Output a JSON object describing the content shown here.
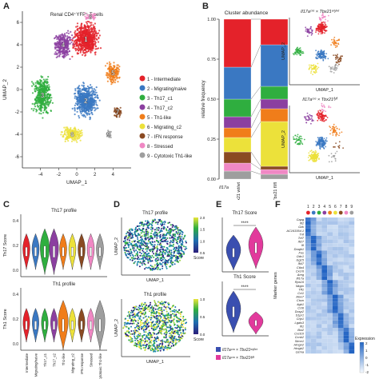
{
  "panels": {
    "A": "A",
    "B": "B",
    "C": "C",
    "D": "D",
    "E": "E",
    "F": "F"
  },
  "colors": {
    "c0": "#e4222a",
    "c1": "#3a78c2",
    "c2": "#2fae3f",
    "c3": "#8b3fa0",
    "c4": "#f07d1a",
    "c5": "#ece13a",
    "c6": "#8a4a22",
    "c7": "#f088c4",
    "c8": "#9e9e9e"
  },
  "panelA": {
    "title": "Renal CD4⁺YFP⁺ T cells",
    "xlabel": "UMAP_1",
    "ylabel": "UMAP_2",
    "xticks": [
      "-4",
      "-2",
      "0",
      "2",
      "4"
    ],
    "yticks": [
      "-6",
      "-4",
      "-2",
      "0",
      "2",
      "4",
      "6"
    ],
    "cluster_labels": [
      "1",
      "2",
      "3",
      "4",
      "5",
      "6",
      "7",
      "8",
      "9"
    ],
    "legend": [
      "1 - Intermediate",
      "2 - Migrating/naive",
      "3 - Th17_c1",
      "4 - Th17_c2",
      "5 - Th1-like",
      "6 - Migrating_c2",
      "7 - IFN response",
      "8 - Stressed",
      "9 - Cytotoxic Th1-like"
    ]
  },
  "panelB": {
    "title": "Cluster abundance",
    "ylabel": "relative frequency",
    "yticks": [
      "0.00",
      "0.25",
      "0.50",
      "0.75",
      "1.00"
    ],
    "xlabel_prefix": "Il17a",
    "umap_top_title": "Il17aᶜʳᵉ × Tbx21ʷᵗ/ʷᵗ",
    "umap_bottom_title": "Il17aᶜʳᵉ × Tbx21ᶠˡ/ᶠˡ",
    "umap_xlabel": "UMAP_1",
    "umap_ylabel": "UMAP_2"
  },
  "panelC": {
    "top_title": "Th17 profile",
    "top_ylabel": "Th17 Score",
    "top_yticks": [
      "0.4",
      "0.2",
      "0.0"
    ],
    "bottom_title": "Th1 profile",
    "bottom_ylabel": "Th1 Score",
    "bottom_yticks": [
      "0.4",
      "0.2",
      "0.0"
    ],
    "categories": [
      "Intermediate",
      "Migrating/naive",
      "Th17_c1",
      "Th17_c2",
      "Th1-like",
      "Migrating_c2",
      "IFN response",
      "Stressed",
      "Cytotoxic Th1-like"
    ]
  },
  "panelD": {
    "top_title": "Th17 profile",
    "bottom_title": "Th1 profile",
    "xlabel": "UMAP_1",
    "ylabel": "UMAP_2",
    "top_scale": [
      "0.5",
      "1.0",
      "1.5",
      "2.0"
    ],
    "bottom_scale": [
      "0.0",
      "0.5",
      "1.0"
    ],
    "scale_title": "Score"
  },
  "panelE": {
    "top_title": "Th17 Score",
    "bottom_title": "Th1 Score",
    "sig": "****",
    "legend1": "Il17aᶜʳᵉ × Tbx21ʷᵗ/ʷᵗ",
    "legend2": "Il17aᶜʳᵉ × Tbx21ᶠˡ/ᶠˡ"
  },
  "panelF": {
    "cluster_numbers": [
      "1",
      "2",
      "3",
      "4",
      "5",
      "6",
      "7",
      "8",
      "9"
    ],
    "ylabel": "Marker genes",
    "genes": [
      "Capg",
      "Ifi2",
      "Gzk",
      "AC163354.1",
      "Tnf",
      "Tcf7",
      "Ifi27",
      "Ifi",
      "Dnajb1",
      "Fos",
      "Odc1",
      "Isg15",
      "Ifi47",
      "Ctla4",
      "Cxcr6",
      "Areg",
      "Ifi17a",
      "Rps16",
      "Nkgm",
      "Tff1",
      "Ccl1",
      "Alox7",
      "Ctsm",
      "Itgb1",
      "Ccl6",
      "Dusp2",
      "S1pr1",
      "Crip1",
      "Lgals3",
      "Ifi1",
      "Bst2",
      "Cxcl10",
      "Ccnb2",
      "Stmn1",
      "Hmgn2",
      "Hmgb2",
      "Gzma"
    ],
    "scale_title": "Expression",
    "scale_ticks": [
      "2",
      "1",
      "0",
      "-1",
      "-2"
    ]
  },
  "chart_data": [
    {
      "type": "bar",
      "title": "Cluster abundance",
      "ylabel": "relative frequency",
      "ylim": [
        0,
        1
      ],
      "categories": [
        "Tbx21 wt/wt",
        "Tbx21 fl/fl"
      ],
      "series": [
        {
          "name": "1 - Intermediate",
          "values": [
            0.3,
            0.16
          ]
        },
        {
          "name": "2 - Migrating/naive",
          "values": [
            0.2,
            0.26
          ]
        },
        {
          "name": "3 - Th17_c1",
          "values": [
            0.11,
            0.08
          ]
        },
        {
          "name": "4 - Th17_c2",
          "values": [
            0.07,
            0.06
          ]
        },
        {
          "name": "5 - Th1-like",
          "values": [
            0.06,
            0.08
          ]
        },
        {
          "name": "6 - Migrating_c2",
          "values": [
            0.09,
            0.28
          ]
        },
        {
          "name": "7 - IFN response",
          "values": [
            0.07,
            0.02
          ]
        },
        {
          "name": "8 - Stressed",
          "values": [
            0.05,
            0.03
          ]
        },
        {
          "name": "9 - Cytotoxic Th1-like",
          "values": [
            0.05,
            0.03
          ]
        }
      ]
    },
    {
      "type": "scatter",
      "title": "Renal CD4⁺YFP⁺ T cells",
      "xlabel": "UMAP_1",
      "ylabel": "UMAP_2",
      "xlim": [
        -6,
        6
      ],
      "ylim": [
        -7,
        7
      ],
      "series": [
        {
          "name": "1",
          "center": [
            1.0,
            4.5
          ]
        },
        {
          "name": "2",
          "center": [
            1.0,
            -1.0
          ]
        },
        {
          "name": "3",
          "center": [
            -3.8,
            -0.5
          ]
        },
        {
          "name": "4",
          "center": [
            -1.5,
            4.0
          ]
        },
        {
          "name": "5",
          "center": [
            4.0,
            1.5
          ]
        },
        {
          "name": "6",
          "center": [
            -0.5,
            -4.0
          ]
        },
        {
          "name": "7",
          "center": [
            4.5,
            -2.0
          ]
        },
        {
          "name": "8",
          "center": [
            1.5,
            6.5
          ]
        },
        {
          "name": "9",
          "center": [
            3.5,
            -4.0
          ]
        }
      ]
    }
  ]
}
